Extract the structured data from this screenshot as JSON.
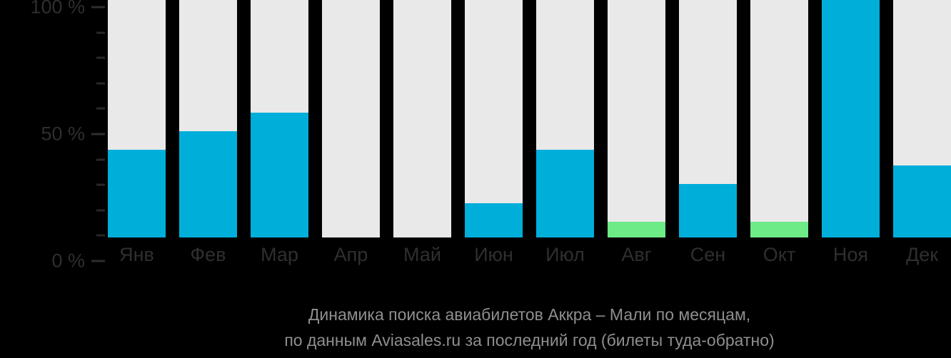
{
  "chart_data": {
    "type": "bar",
    "categories": [
      "Янв",
      "Фев",
      "Мар",
      "Апр",
      "Май",
      "Июн",
      "Июл",
      "Авг",
      "Сен",
      "Окт",
      "Ноя",
      "Дек"
    ],
    "values": [
      33,
      40,
      47,
      0,
      0,
      13,
      33,
      6,
      20,
      6,
      100,
      27
    ],
    "point_colors": [
      "#00AEDA",
      "#00AEDA",
      "#00AEDA",
      "#00AEDA",
      "#00AEDA",
      "#00AEDA",
      "#00AEDA",
      "#6CEB87",
      "#00AEDA",
      "#6CEB87",
      "#00AEDA",
      "#00AEDA"
    ],
    "title": "Динамика поиска авиабилетов Аккра – Мали по месяцам,",
    "subtitle": "по данным Aviasales.ru за последний год (билеты туда-обратно)",
    "xlabel": "",
    "ylabel": "",
    "ylim": [
      0,
      100
    ],
    "y_unit": "%",
    "y_ticks_major": [
      {
        "label": "100 %",
        "value": 100
      },
      {
        "label": "50 %",
        "value": 50
      },
      {
        "label": "0 %",
        "value": 0
      }
    ],
    "y_ticks_minor": [
      90,
      80,
      70,
      60,
      40,
      30,
      20,
      10
    ],
    "grid": false,
    "legend_position": "none",
    "colors": {
      "background": "#000000",
      "bar_track": "#E9E9E9",
      "bar_primary": "#00AEDA",
      "bar_secondary": "#6CEB87",
      "axis_text": "#2E2E2E",
      "caption_text": "#8F8F8F"
    }
  }
}
